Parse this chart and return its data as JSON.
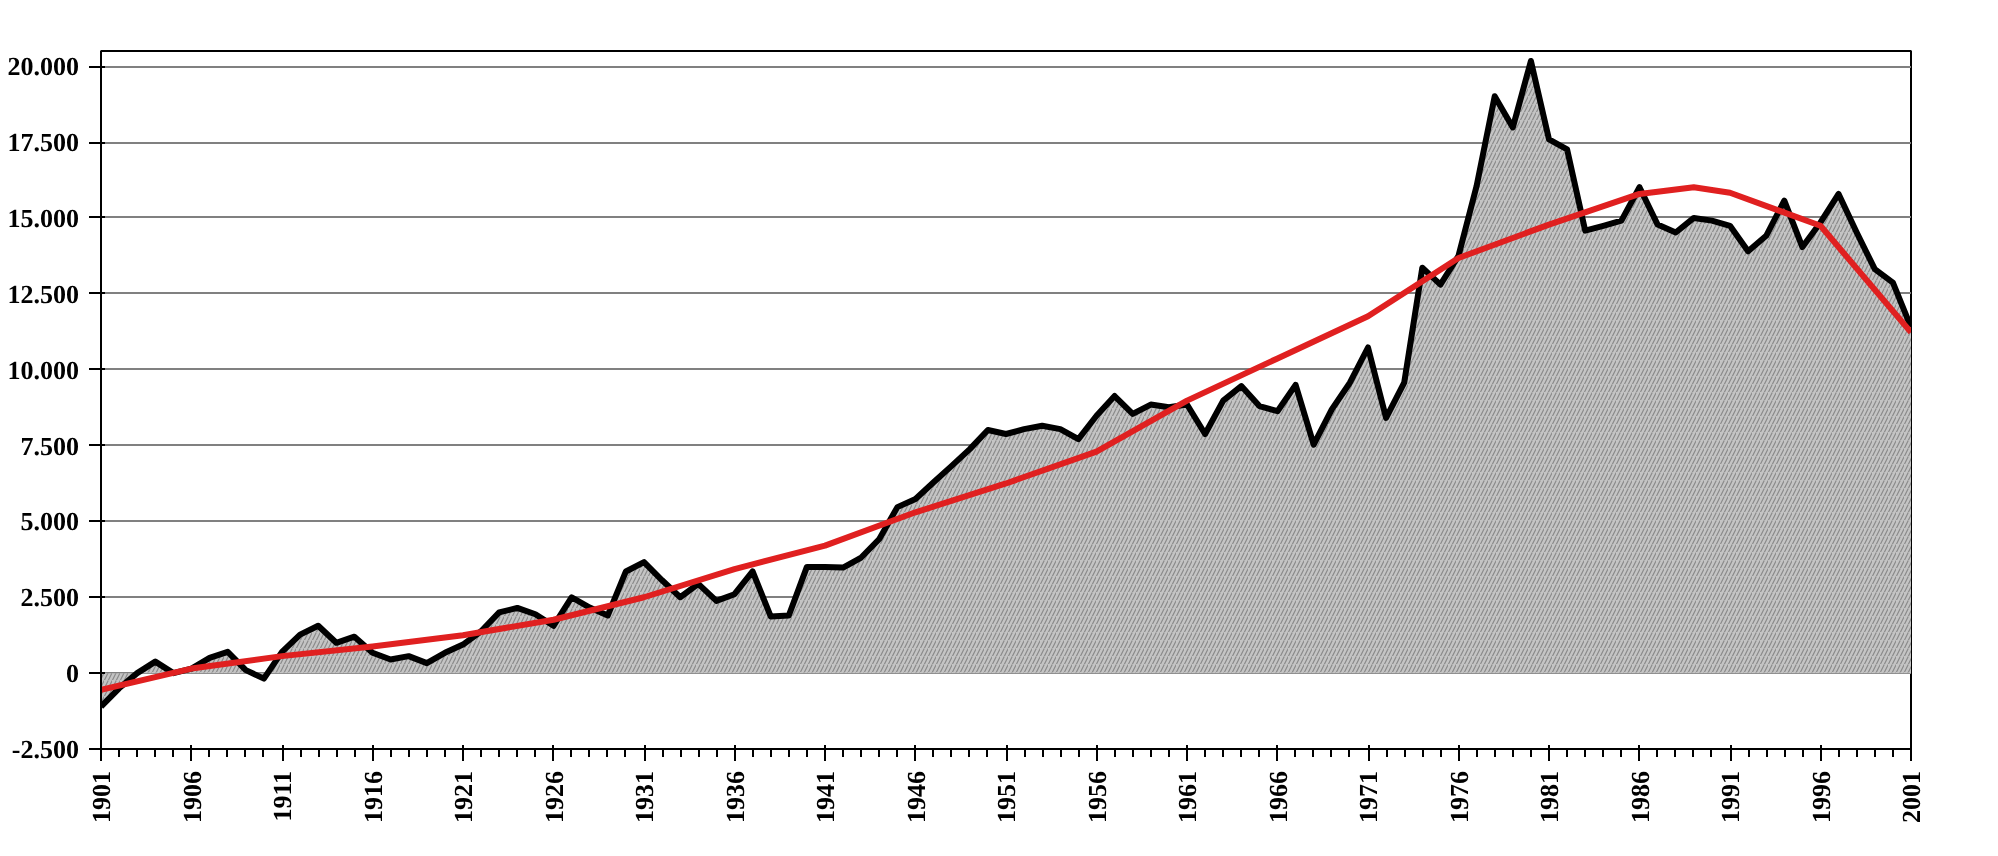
{
  "chart_data": {
    "type": "area",
    "xlim": [
      1901,
      2001
    ],
    "ylim": [
      -2500,
      20500
    ],
    "xticks": [
      1901,
      1906,
      1911,
      1916,
      1921,
      1926,
      1931,
      1936,
      1941,
      1946,
      1951,
      1956,
      1961,
      1966,
      1971,
      1976,
      1981,
      1986,
      1991,
      1996,
      2001
    ],
    "yticks": [
      {
        "value": -2500,
        "label": "-2.500"
      },
      {
        "value": 0,
        "label": "0"
      },
      {
        "value": 2500,
        "label": "2.500"
      },
      {
        "value": 5000,
        "label": "5.000"
      },
      {
        "value": 7500,
        "label": "7.500"
      },
      {
        "value": 10000,
        "label": "10.000"
      },
      {
        "value": 12500,
        "label": "12.500"
      },
      {
        "value": 15000,
        "label": "15.000"
      },
      {
        "value": 17500,
        "label": "17.500"
      },
      {
        "value": 20000,
        "label": "20.000"
      }
    ],
    "grid": "y",
    "marker": "none",
    "x": [
      1901,
      1902,
      1903,
      1904,
      1905,
      1906,
      1907,
      1908,
      1909,
      1910,
      1911,
      1912,
      1913,
      1914,
      1915,
      1916,
      1917,
      1918,
      1919,
      1920,
      1921,
      1922,
      1923,
      1924,
      1925,
      1926,
      1927,
      1928,
      1929,
      1930,
      1931,
      1932,
      1933,
      1934,
      1935,
      1936,
      1937,
      1938,
      1939,
      1940,
      1941,
      1942,
      1943,
      1944,
      1945,
      1946,
      1947,
      1948,
      1949,
      1950,
      1951,
      1952,
      1953,
      1954,
      1955,
      1956,
      1957,
      1958,
      1959,
      1960,
      1961,
      1962,
      1963,
      1964,
      1965,
      1966,
      1967,
      1968,
      1969,
      1970,
      1971,
      1972,
      1973,
      1974,
      1975,
      1976,
      1977,
      1978,
      1979,
      1980,
      1981,
      1982,
      1983,
      1984,
      1985,
      1986,
      1987,
      1988,
      1989,
      1990,
      1991,
      1992,
      1993,
      1994,
      1995,
      1996,
      1997,
      1998,
      1999,
      2000,
      2001
    ],
    "series": [
      {
        "color": "#000000",
        "values": [
          -1100,
          -500,
          0,
          380,
          0,
          150,
          500,
          700,
          100,
          -180,
          700,
          1270,
          1560,
          1000,
          1200,
          670,
          450,
          560,
          330,
          670,
          940,
          1380,
          2000,
          2150,
          1940,
          1560,
          2500,
          2160,
          1900,
          3350,
          3660,
          3060,
          2500,
          2940,
          2380,
          2600,
          3350,
          1870,
          1900,
          3500,
          3500,
          3480,
          3810,
          4420,
          5470,
          5740,
          6290,
          6830,
          7380,
          8010,
          7880,
          8040,
          8150,
          8040,
          7710,
          8480,
          9130,
          8540,
          8850,
          8760,
          8850,
          7880,
          8980,
          9460,
          8800,
          8630,
          9500,
          7530,
          8690,
          9570,
          10730,
          8410,
          9570,
          13360,
          12800,
          13750,
          16050,
          19010,
          17980,
          20170,
          17590,
          17260,
          14580,
          14740,
          14910,
          16010,
          14780,
          14520,
          15000,
          14910,
          14740,
          13900,
          14410,
          15570,
          14040,
          14850,
          15790,
          14520,
          13310,
          12870,
          11400
        ]
      },
      {
        "type": "line",
        "color": "#e02020",
        "x": [
          1901,
          1906,
          1911,
          1916,
          1921,
          1926,
          1931,
          1936,
          1941,
          1946,
          1951,
          1956,
          1961,
          1966,
          1971,
          1976,
          1981,
          1986,
          1989,
          1991,
          1996,
          2001
        ],
        "values": [
          -550,
          150,
          560,
          880,
          1250,
          1760,
          2500,
          3430,
          4200,
          5300,
          6250,
          7300,
          8980,
          10370,
          11760,
          13680,
          14780,
          15790,
          16010,
          15830,
          14740,
          11230
        ]
      }
    ]
  }
}
